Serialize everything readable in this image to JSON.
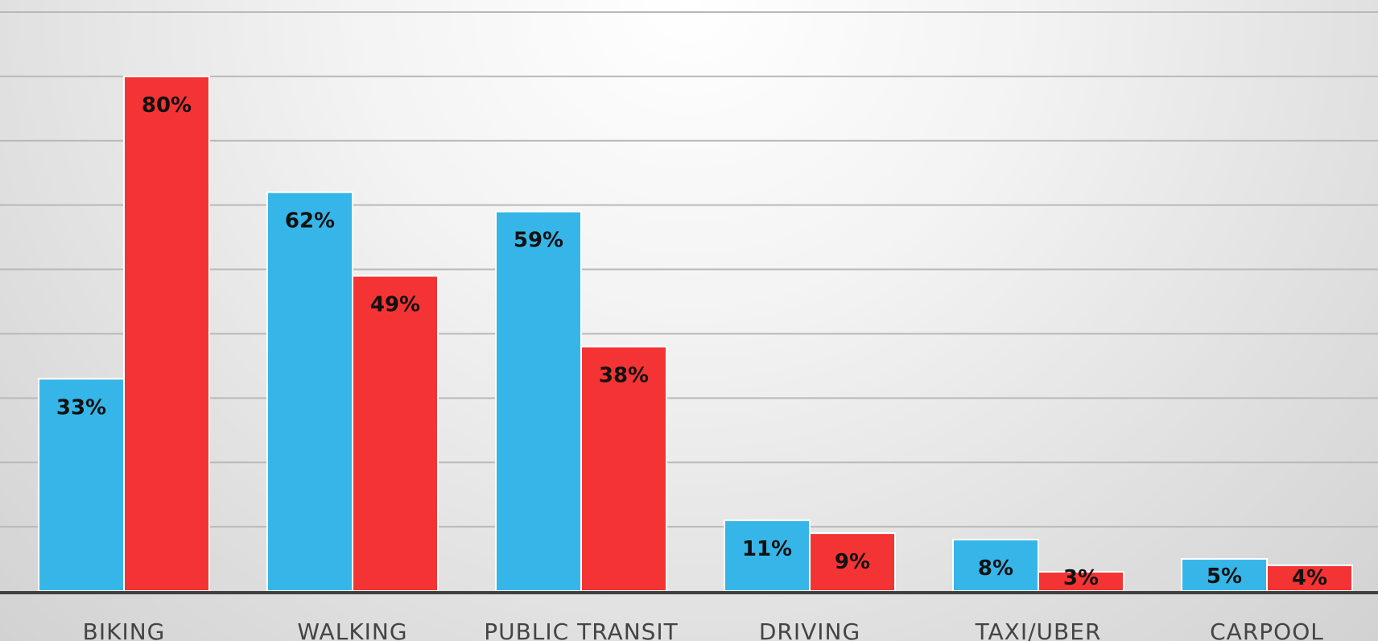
{
  "chart_data": {
    "type": "bar",
    "categories": [
      "BIKING",
      "WALKING",
      "PUBLIC TRANSIT",
      "DRIVING",
      "TAXI/UBER",
      "CARPOOL"
    ],
    "series": [
      {
        "values": [
          33,
          62,
          59,
          11,
          8,
          5
        ],
        "color": "#36b6e8"
      },
      {
        "values": [
          80,
          49,
          38,
          9,
          3,
          4
        ],
        "color": "#f43434"
      }
    ],
    "value_labels": [
      [
        "33%",
        "62%",
        "59%",
        "11%",
        "8%",
        "5%"
      ],
      [
        "80%",
        "49%",
        "38%",
        "9%",
        "3%",
        "4%"
      ]
    ],
    "ylim": [
      0,
      90
    ],
    "grid": true,
    "legend": "none",
    "title": "",
    "xlabel": "",
    "ylabel": ""
  }
}
